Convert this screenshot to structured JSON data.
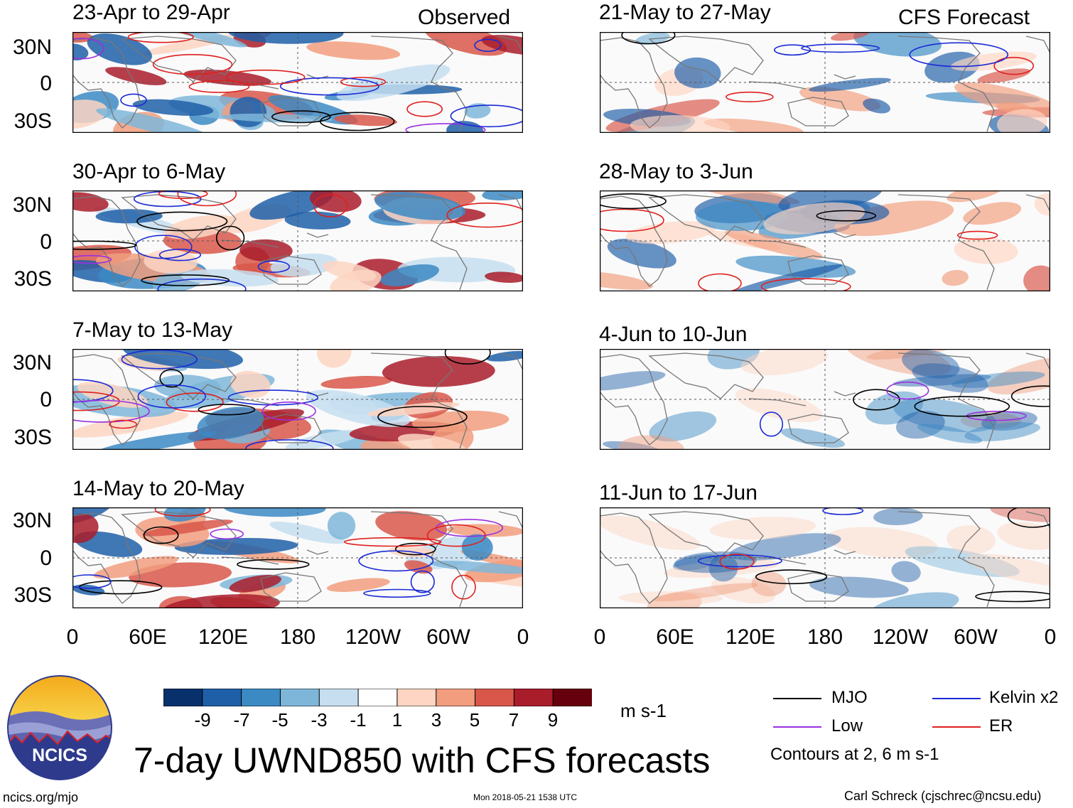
{
  "left_header_note": "Observed",
  "right_header_note": "CFS Forecast",
  "lat_labels": [
    "30N",
    "0",
    "30S"
  ],
  "lon_labels": [
    "0",
    "60E",
    "120E",
    "180",
    "120W",
    "60W",
    "0"
  ],
  "observed_panels": [
    {
      "title": "23-Apr to 29-Apr"
    },
    {
      "title": "30-Apr to 6-May"
    },
    {
      "title": "7-May to 13-May"
    },
    {
      "title": "14-May to 20-May"
    }
  ],
  "forecast_panels": [
    {
      "title": "21-May to 27-May"
    },
    {
      "title": "28-May to 3-Jun"
    },
    {
      "title": "4-Jun to 10-Jun"
    },
    {
      "title": "11-Jun to 17-Jun"
    }
  ],
  "colorbar": {
    "ticks": [
      "-9",
      "-7",
      "-5",
      "-3",
      "-1",
      "1",
      "3",
      "5",
      "7",
      "9"
    ],
    "unit": "m s-1",
    "colors": [
      "#08306b",
      "#1f5fa8",
      "#3c8ac4",
      "#7eb6d9",
      "#c6def0",
      "#ffffff",
      "#fdd5c2",
      "#f19d7e",
      "#d8574a",
      "#a91c2a",
      "#67000d"
    ]
  },
  "legend": {
    "items": [
      {
        "label": "MJO",
        "color": "#000000"
      },
      {
        "label": "Kelvin x2",
        "color": "#1a2bd6"
      },
      {
        "label": "Low",
        "color": "#9b30e0"
      },
      {
        "label": "ER",
        "color": "#e0201e"
      }
    ],
    "contours_note": "Contours at 2, 6 m s-1"
  },
  "main_title": "7-day UWND850 with CFS forecasts",
  "logo_text": "NCICS",
  "footer": {
    "left": "ncics.org/mjo",
    "center": "Mon 2018-05-21 1538 UTC",
    "right": "Carl Schreck (cjschrec@ncsu.edu)"
  }
}
